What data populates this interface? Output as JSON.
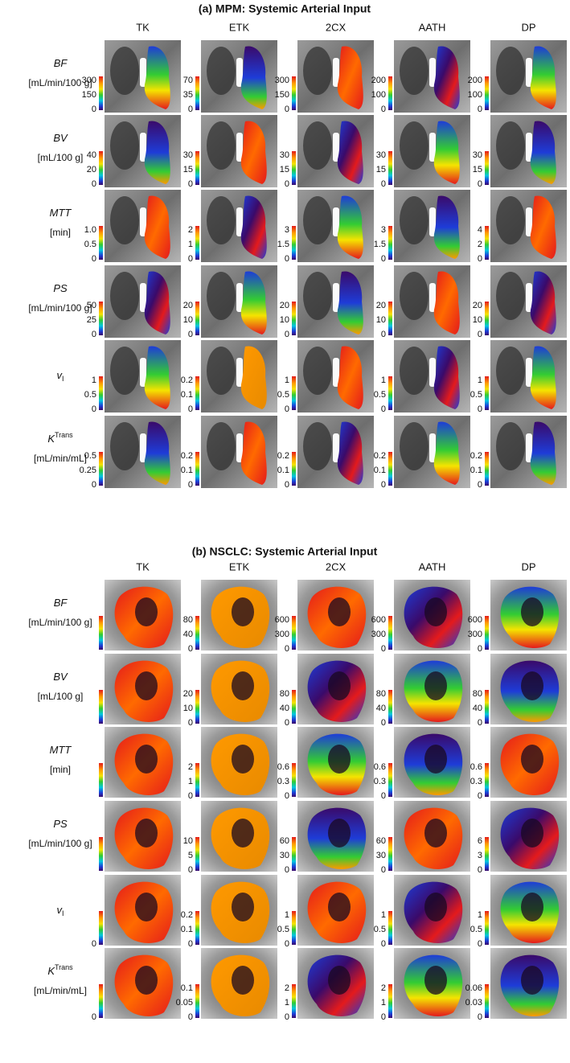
{
  "panels": [
    {
      "title": "(a) MPM: Systemic Arterial Input",
      "columns": [
        "TK",
        "ETK",
        "2CX",
        "AATH",
        "DP"
      ],
      "rows": [
        {
          "name": "BF",
          "unit": "[mL/min/100 g]",
          "ticks": [
            [
              "300",
              "150",
              "0"
            ],
            [
              "70",
              "35",
              "0"
            ],
            [
              "300",
              "150",
              "0"
            ],
            [
              "200",
              "100",
              "0"
            ],
            [
              "200",
              "100",
              "0"
            ]
          ]
        },
        {
          "name": "BV",
          "unit": "[mL/100 g]",
          "ticks": [
            [
              "40",
              "20",
              "0"
            ],
            [
              "30",
              "15",
              "0"
            ],
            [
              "30",
              "15",
              "0"
            ],
            [
              "30",
              "15",
              "0"
            ],
            [
              "30",
              "15",
              "0"
            ]
          ]
        },
        {
          "name": "MTT",
          "unit": "[min]",
          "ticks": [
            [
              "1.0",
              "0.5",
              "0"
            ],
            [
              "2",
              "1",
              "0"
            ],
            [
              "3",
              "1.5",
              "0"
            ],
            [
              "3",
              "1.5",
              "0"
            ],
            [
              "4",
              "2",
              "0"
            ]
          ]
        },
        {
          "name": "PS",
          "unit": "[mL/min/100 g]",
          "ticks": [
            [
              "50",
              "25",
              "0"
            ],
            [
              "20",
              "10",
              "0"
            ],
            [
              "20",
              "10",
              "0"
            ],
            [
              "20",
              "10",
              "0"
            ],
            [
              "20",
              "10",
              "0"
            ]
          ]
        },
        {
          "name": "v",
          "sub": "I",
          "ticks": [
            [
              "1",
              "0.5",
              "0"
            ],
            [
              "0.2",
              "0.1",
              "0"
            ],
            [
              "1",
              "0.5",
              "0"
            ],
            [
              "1",
              "0.5",
              "0"
            ],
            [
              "1",
              "0.5",
              "0"
            ]
          ]
        },
        {
          "name": "K",
          "sup": "Trans",
          "unit": "[mL/min/mL]",
          "ticks": [
            [
              "0.5",
              "0.25",
              "0"
            ],
            [
              "0.2",
              "0.1",
              "0"
            ],
            [
              "0.2",
              "0.1",
              "0"
            ],
            [
              "0.2",
              "0.1",
              "0"
            ],
            [
              "0.2",
              "0.1",
              "0"
            ]
          ]
        }
      ]
    },
    {
      "title": "(b) NSCLC: Systemic Arterial Input",
      "columns": [
        "TK",
        "ETK",
        "2CX",
        "AATH",
        "DP"
      ],
      "rows": [
        {
          "name": "BF",
          "unit": "[mL/min/100 g]",
          "ticks": [
            [],
            [
              "80",
              "40",
              "0"
            ],
            [
              "600",
              "300",
              "0"
            ],
            [
              "600",
              "300",
              "0"
            ],
            [
              "600",
              "300",
              "0"
            ]
          ]
        },
        {
          "name": "BV",
          "unit": "[mL/100 g]",
          "ticks": [
            [],
            [
              "20",
              "10",
              "0"
            ],
            [
              "80",
              "40",
              "0"
            ],
            [
              "80",
              "40",
              "0"
            ],
            [
              "80",
              "40",
              "0"
            ]
          ]
        },
        {
          "name": "MTT",
          "unit": "[min]",
          "ticks": [
            [],
            [
              "2",
              "1",
              "0"
            ],
            [
              "0.6",
              "0.3",
              "0"
            ],
            [
              "0.6",
              "0.3",
              "0"
            ],
            [
              "0.6",
              "0.3",
              "0"
            ]
          ]
        },
        {
          "name": "PS",
          "unit": "[mL/min/100 g]",
          "ticks": [
            [],
            [
              "10",
              "5",
              "0"
            ],
            [
              "60",
              "30",
              "0"
            ],
            [
              "60",
              "30",
              "0"
            ],
            [
              "6",
              "3",
              "0"
            ]
          ]
        },
        {
          "name": "v",
          "sub": "I",
          "ticks": [
            [
              "0"
            ],
            [
              "0.2",
              "0.1",
              "0"
            ],
            [
              "1",
              "0.5",
              "0"
            ],
            [
              "1",
              "0.5",
              "0"
            ],
            [
              "1",
              "0.5",
              "0"
            ]
          ]
        },
        {
          "name": "K",
          "sup": "Trans",
          "unit": "[mL/min/mL]",
          "ticks": [
            [
              "0"
            ],
            [
              "0.1",
              "0.05",
              "0"
            ],
            [
              "2",
              "1",
              "0"
            ],
            [
              "2",
              "1",
              "0"
            ],
            [
              "0.06",
              "0.03",
              "0"
            ]
          ]
        }
      ]
    }
  ]
}
